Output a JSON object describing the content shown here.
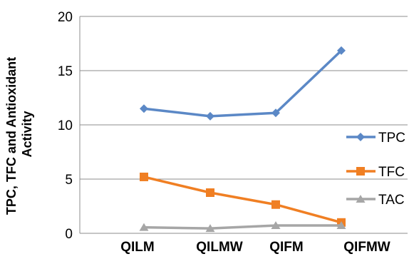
{
  "chart_data": {
    "type": "line",
    "categories": [
      "QILM",
      "QILMW",
      "QIFM",
      "QIFMW"
    ],
    "series": [
      {
        "name": "TPC",
        "values": [
          11.5,
          10.8,
          11.1,
          16.85
        ],
        "color": "#5b88c6",
        "marker": "diamond"
      },
      {
        "name": "TFC",
        "values": [
          5.2,
          3.75,
          2.65,
          1.0
        ],
        "color": "#f07f23",
        "marker": "square"
      },
      {
        "name": "TAC",
        "values": [
          0.55,
          0.45,
          0.72,
          0.72
        ],
        "color": "#a6a6a6",
        "marker": "triangle"
      }
    ],
    "ylabel_lines": [
      "TPC, TFC and Antioxidant",
      "Activity"
    ],
    "yticks": [
      "0",
      "5",
      "10",
      "15",
      "20"
    ],
    "ylim": [
      0,
      20
    ],
    "grid": true,
    "legend_position": "right"
  }
}
